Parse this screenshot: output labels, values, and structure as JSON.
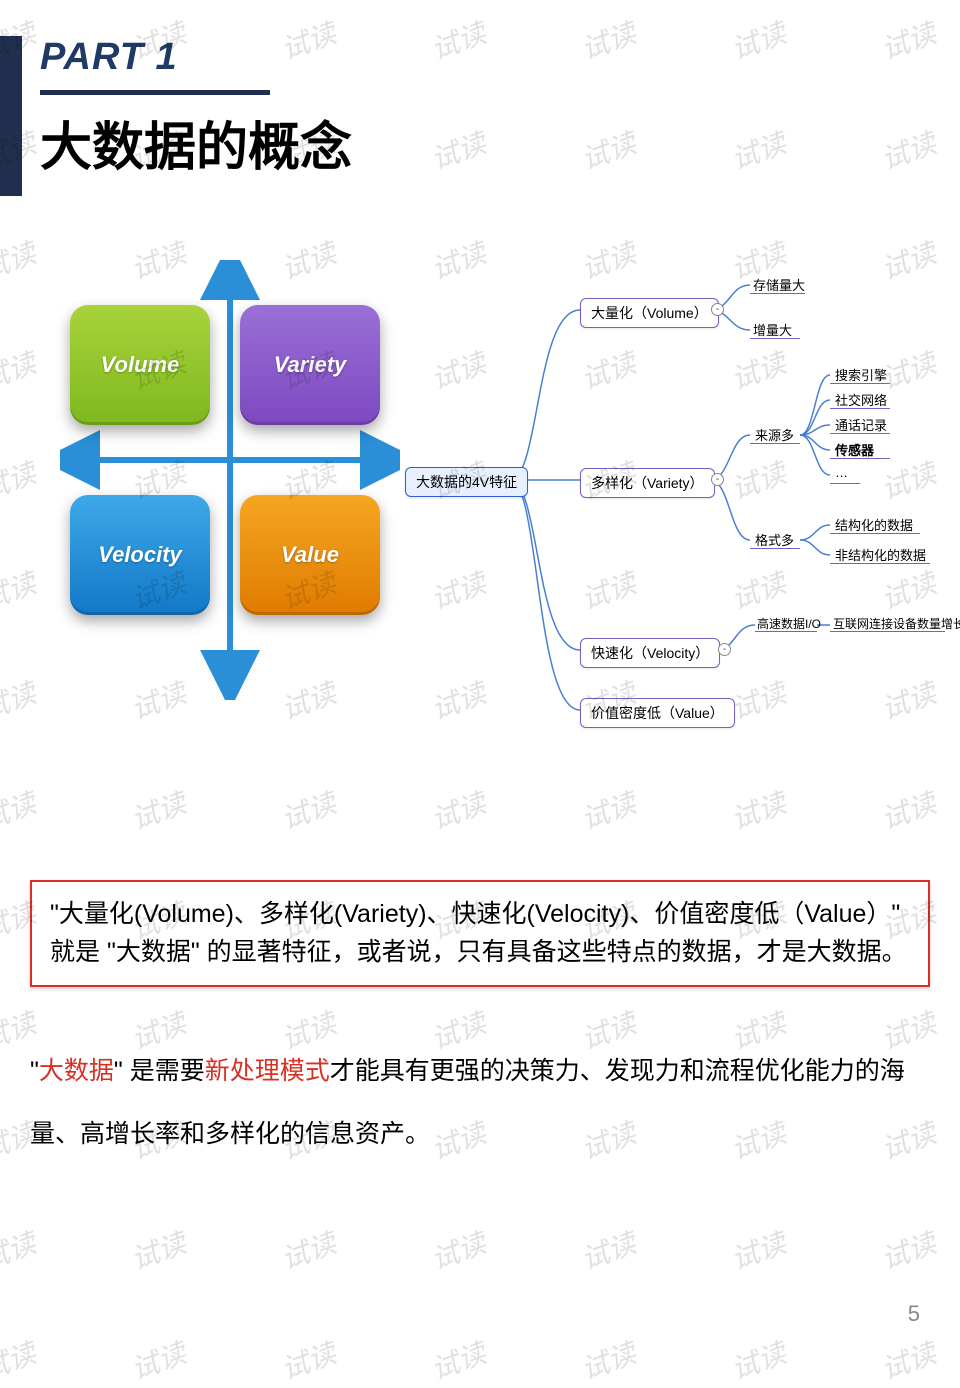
{
  "watermark_text": "试读",
  "header": {
    "part_label": "PART 1",
    "title": "大数据的概念",
    "accent_color": "#1f2f4d",
    "part_color": "#1f3a63"
  },
  "quadrant": {
    "axis_color": "#2a8fd6",
    "tiles": {
      "volume": {
        "label": "Volume",
        "bg_top": "#a8d33a",
        "bg_bot": "#7fb81f"
      },
      "variety": {
        "label": "Variety",
        "bg_top": "#9a6fd6",
        "bg_bot": "#7d49c0"
      },
      "velocity": {
        "label": "Velocity",
        "bg_top": "#3da9e8",
        "bg_bot": "#1278c8"
      },
      "value": {
        "label": "Value",
        "bg_top": "#f5a623",
        "bg_bot": "#e07b00"
      }
    }
  },
  "mindmap": {
    "root_color": "#2a5fd6",
    "node_color": "#7a5fc0",
    "line_color": "#4a7fd0",
    "root": "大数据的4V特征",
    "branches": {
      "volume": {
        "label": "大量化（Volume）",
        "leaves": [
          "存储量大",
          "增量大"
        ]
      },
      "variety": {
        "label": "多样化（Variety）",
        "sub": {
          "source": {
            "label": "来源多",
            "leaves": [
              "搜索引擎",
              "社交网络",
              "通话记录",
              "传感器",
              "…"
            ]
          },
          "format": {
            "label": "格式多",
            "leaves": [
              "结构化的数据",
              "非结构化的数据"
            ]
          }
        }
      },
      "velocity": {
        "label": "快速化（Velocity）",
        "mid": "高速数据I/O",
        "leaf": "互联网连接设备数量增长"
      },
      "value": {
        "label": "价值密度低（Value）"
      }
    }
  },
  "redbox": {
    "border_color": "#d93025",
    "text": "\"大量化(Volume)、多样化(Variety)、快速化(Velocity)、价值密度低（Value）\" 就是 \"大数据\" 的显著特征，或者说，只有具备这些特点的数据，才是大数据。"
  },
  "paragraph": {
    "pre": "\"",
    "red1": "大数据",
    "mid1": "\" 是需要",
    "red2": "新处理模式",
    "rest": "才能具有更强的决策力、发现力和流程优化能力的海量、高增长率和多样化的信息资产。"
  },
  "page_number": "5"
}
